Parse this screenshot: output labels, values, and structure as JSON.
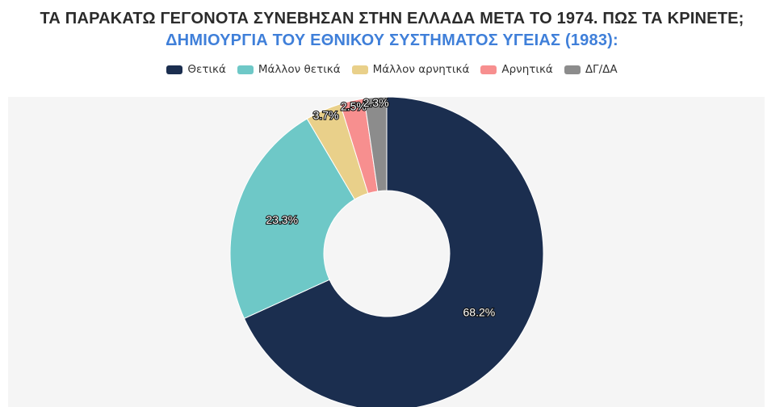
{
  "header": {
    "title": "ΤΑ ΠΑΡΑΚΑΤΩ ΓΕΓΟΝΟΤΑ ΣΥΝΕΒΗΣΑΝ ΣΤΗΝ ΕΛΛΑΔΑ ΜΕΤΑ ΤΟ 1974. ΠΩΣ ΤΑ ΚΡΙΝΕΤΕ;",
    "subtitle": "ΔΗΜΙΟΥΡΓΙΑ ΤΟΥ ΕΘΝΙΚΟΥ ΣΥΣΤΗΜΑΤΟΣ ΥΓΕΙΑΣ (1983):"
  },
  "chart_data": {
    "type": "pie",
    "donut": true,
    "title": "ΤΑ ΠΑΡΑΚΑΤΩ ΓΕΓΟΝΟΤΑ ΣΥΝΕΒΗΣΑΝ ΣΤΗΝ ΕΛΛΑΔΑ ΜΕΤΑ ΤΟ 1974. ΠΩΣ ΤΑ ΚΡΙΝΕΤΕ;",
    "subtitle": "ΔΗΜΙΟΥΡΓΙΑ ΤΟΥ ΕΘΝΙΚΟΥ ΣΥΣΤΗΜΑΤΟΣ ΥΓΕΙΑΣ (1983):",
    "legend_position": "top",
    "slices": [
      {
        "label": "Θετικά",
        "value": 68.2,
        "display": "68.2%",
        "color": "#1b2e4f"
      },
      {
        "label": "Μάλλον θετικά",
        "value": 23.3,
        "display": "23.3%",
        "color": "#6ec8c7"
      },
      {
        "label": "Μάλλον αρνητικά",
        "value": 3.7,
        "display": "3.7%",
        "color": "#e9d08a"
      },
      {
        "label": "Αρνητικά",
        "value": 2.5,
        "display": "2.5%",
        "color": "#f78f8f"
      },
      {
        "label": "ΔΓ/ΔΑ",
        "value": 2.3,
        "display": "2.3%",
        "color": "#8c8c8c"
      }
    ]
  }
}
